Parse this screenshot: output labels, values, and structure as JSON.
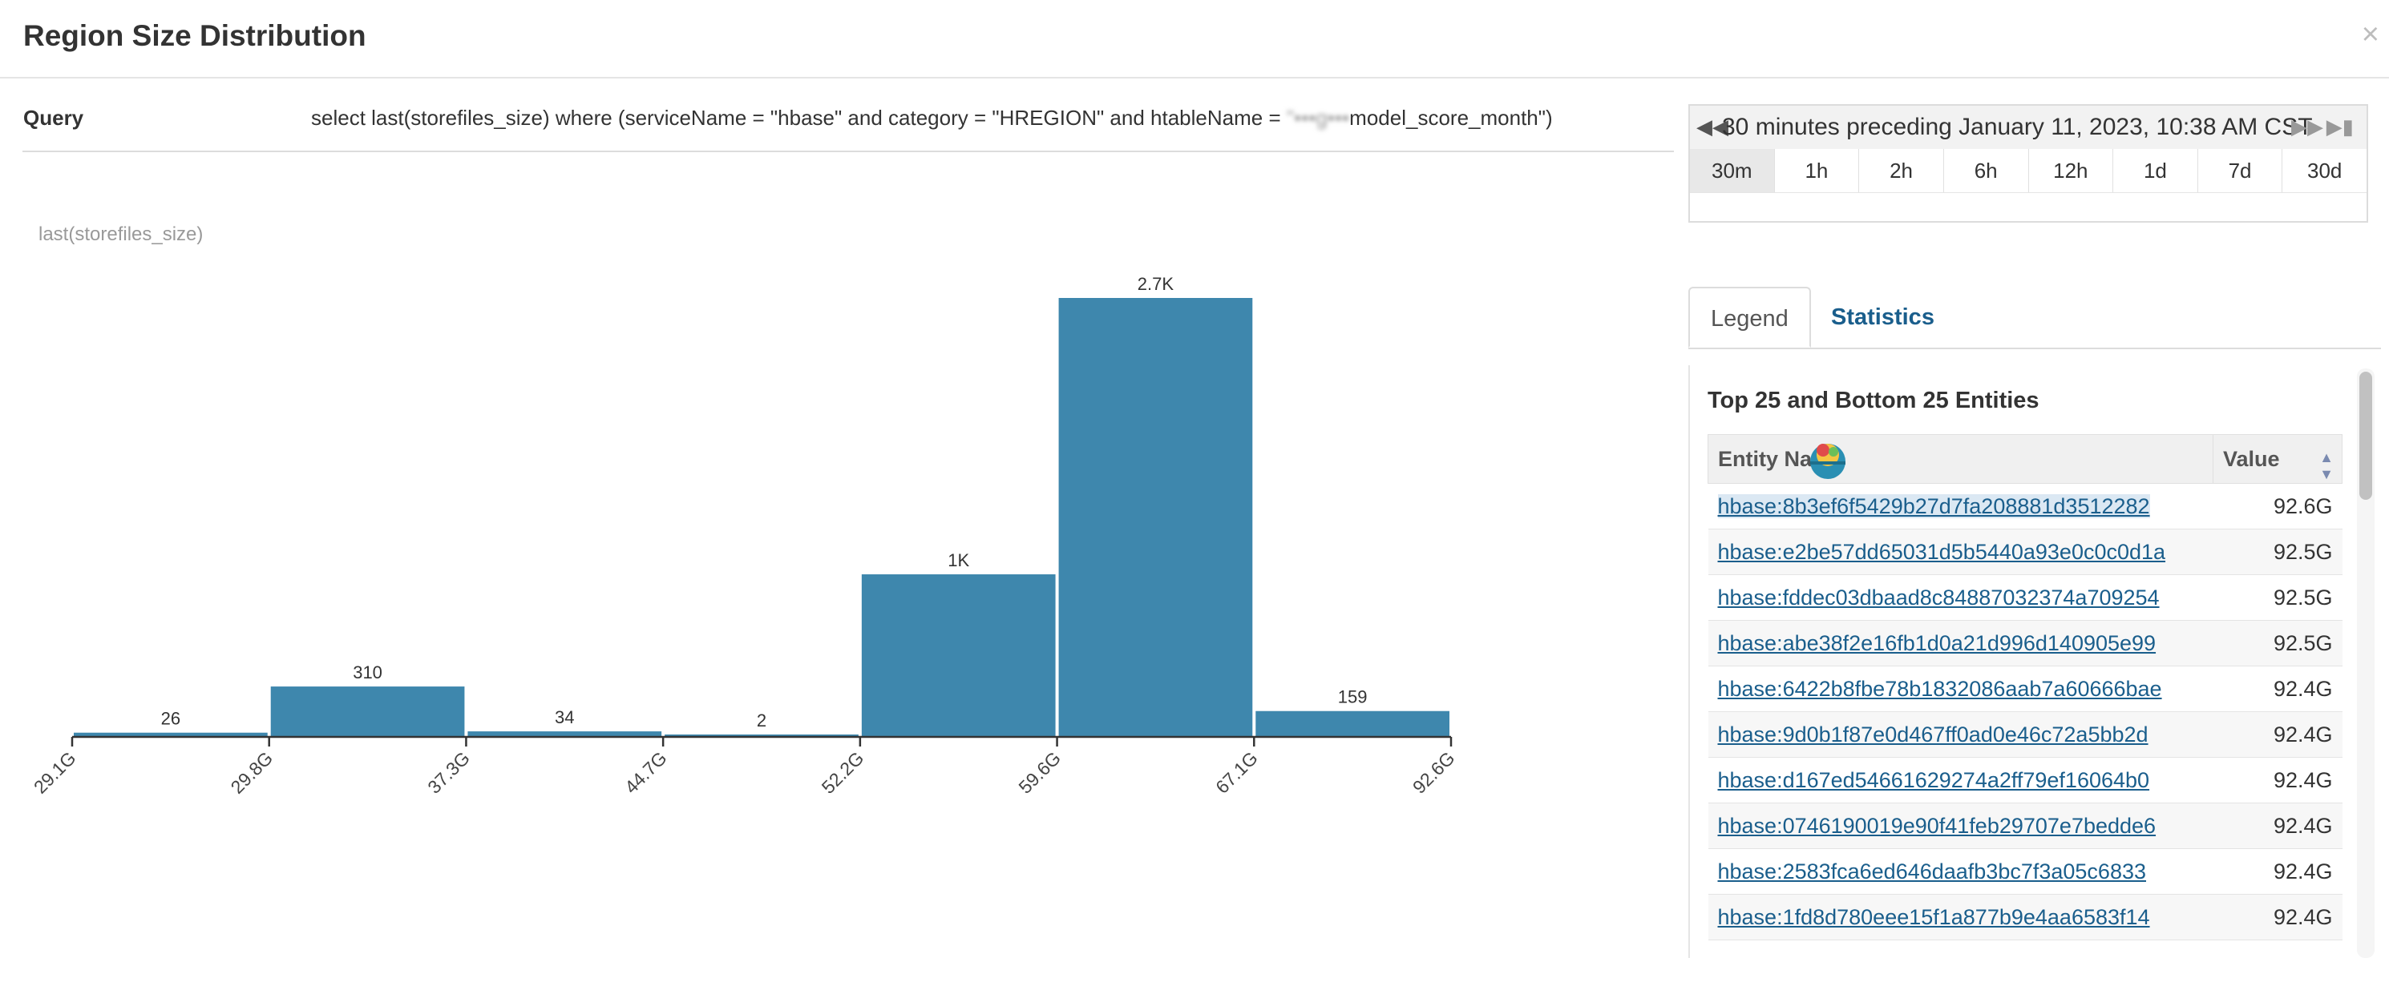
{
  "dialog": {
    "title": "Region Size Distribution",
    "close_glyph": "×"
  },
  "query": {
    "label": "Query",
    "text_before": "select last(storefiles_size) where (serviceName = \"hbase\" and category = \"HREGION\" and htableName = ",
    "text_obscured": "\"•••g•••",
    "text_after": "model_score_month\")"
  },
  "time_range": {
    "title": "30 minutes preceding January 11, 2023, 10:38 AM CST",
    "prev_icon": "rewind-icon",
    "next_icon": "fast-forward-icon",
    "last_icon": "skip-to-end-icon",
    "options": [
      "30m",
      "1h",
      "2h",
      "6h",
      "12h",
      "1d",
      "7d",
      "30d"
    ],
    "selected": "30m"
  },
  "tabs": {
    "legend": "Legend",
    "statistics": "Statistics",
    "active": "Legend"
  },
  "legend": {
    "heading": "Top 25 and Bottom 25 Entities",
    "col_entity": "Entity Na",
    "col_value": "Value",
    "rows": [
      {
        "name": "hbase:8b3ef6f5429b27d7fa208881d3512282",
        "value": "92.6G"
      },
      {
        "name": "hbase:e2be57dd65031d5b5440a93e0c0c0d1a",
        "value": "92.5G"
      },
      {
        "name": "hbase:fddec03dbaad8c84887032374a709254",
        "value": "92.5G"
      },
      {
        "name": "hbase:abe38f2e16fb1d0a21d996d140905e99",
        "value": "92.5G"
      },
      {
        "name": "hbase:6422b8fbe78b1832086aab7a60666bae",
        "value": "92.4G"
      },
      {
        "name": "hbase:9d0b1f87e0d467ff0ad0e46c72a5bb2d",
        "value": "92.4G"
      },
      {
        "name": "hbase:d167ed54661629274a2ff79ef16064b0",
        "value": "92.4G"
      },
      {
        "name": "hbase:0746190019e90f41feb29707e7bedde6",
        "value": "92.4G"
      },
      {
        "name": "hbase:2583fca6ed646daafb3bc7f3a05c6833",
        "value": "92.4G"
      },
      {
        "name": "hbase:1fd8d780eee15f1a877b9e4aa6583f14",
        "value": "92.4G"
      }
    ]
  },
  "chart_data": {
    "type": "bar",
    "series_label": "last(storefiles_size)",
    "bin_edges": [
      "29.1G",
      "29.8G",
      "37.3G",
      "44.7G",
      "52.2G",
      "59.6G",
      "67.1G",
      "92.6G"
    ],
    "values": [
      26,
      310,
      34,
      2,
      1000,
      2700,
      159
    ],
    "value_labels": [
      "26",
      "310",
      "34",
      "2",
      "1K",
      "2.7K",
      "159"
    ],
    "ylim": [
      0,
      2700
    ],
    "grid": false,
    "bar_color": "#3e87ad"
  }
}
